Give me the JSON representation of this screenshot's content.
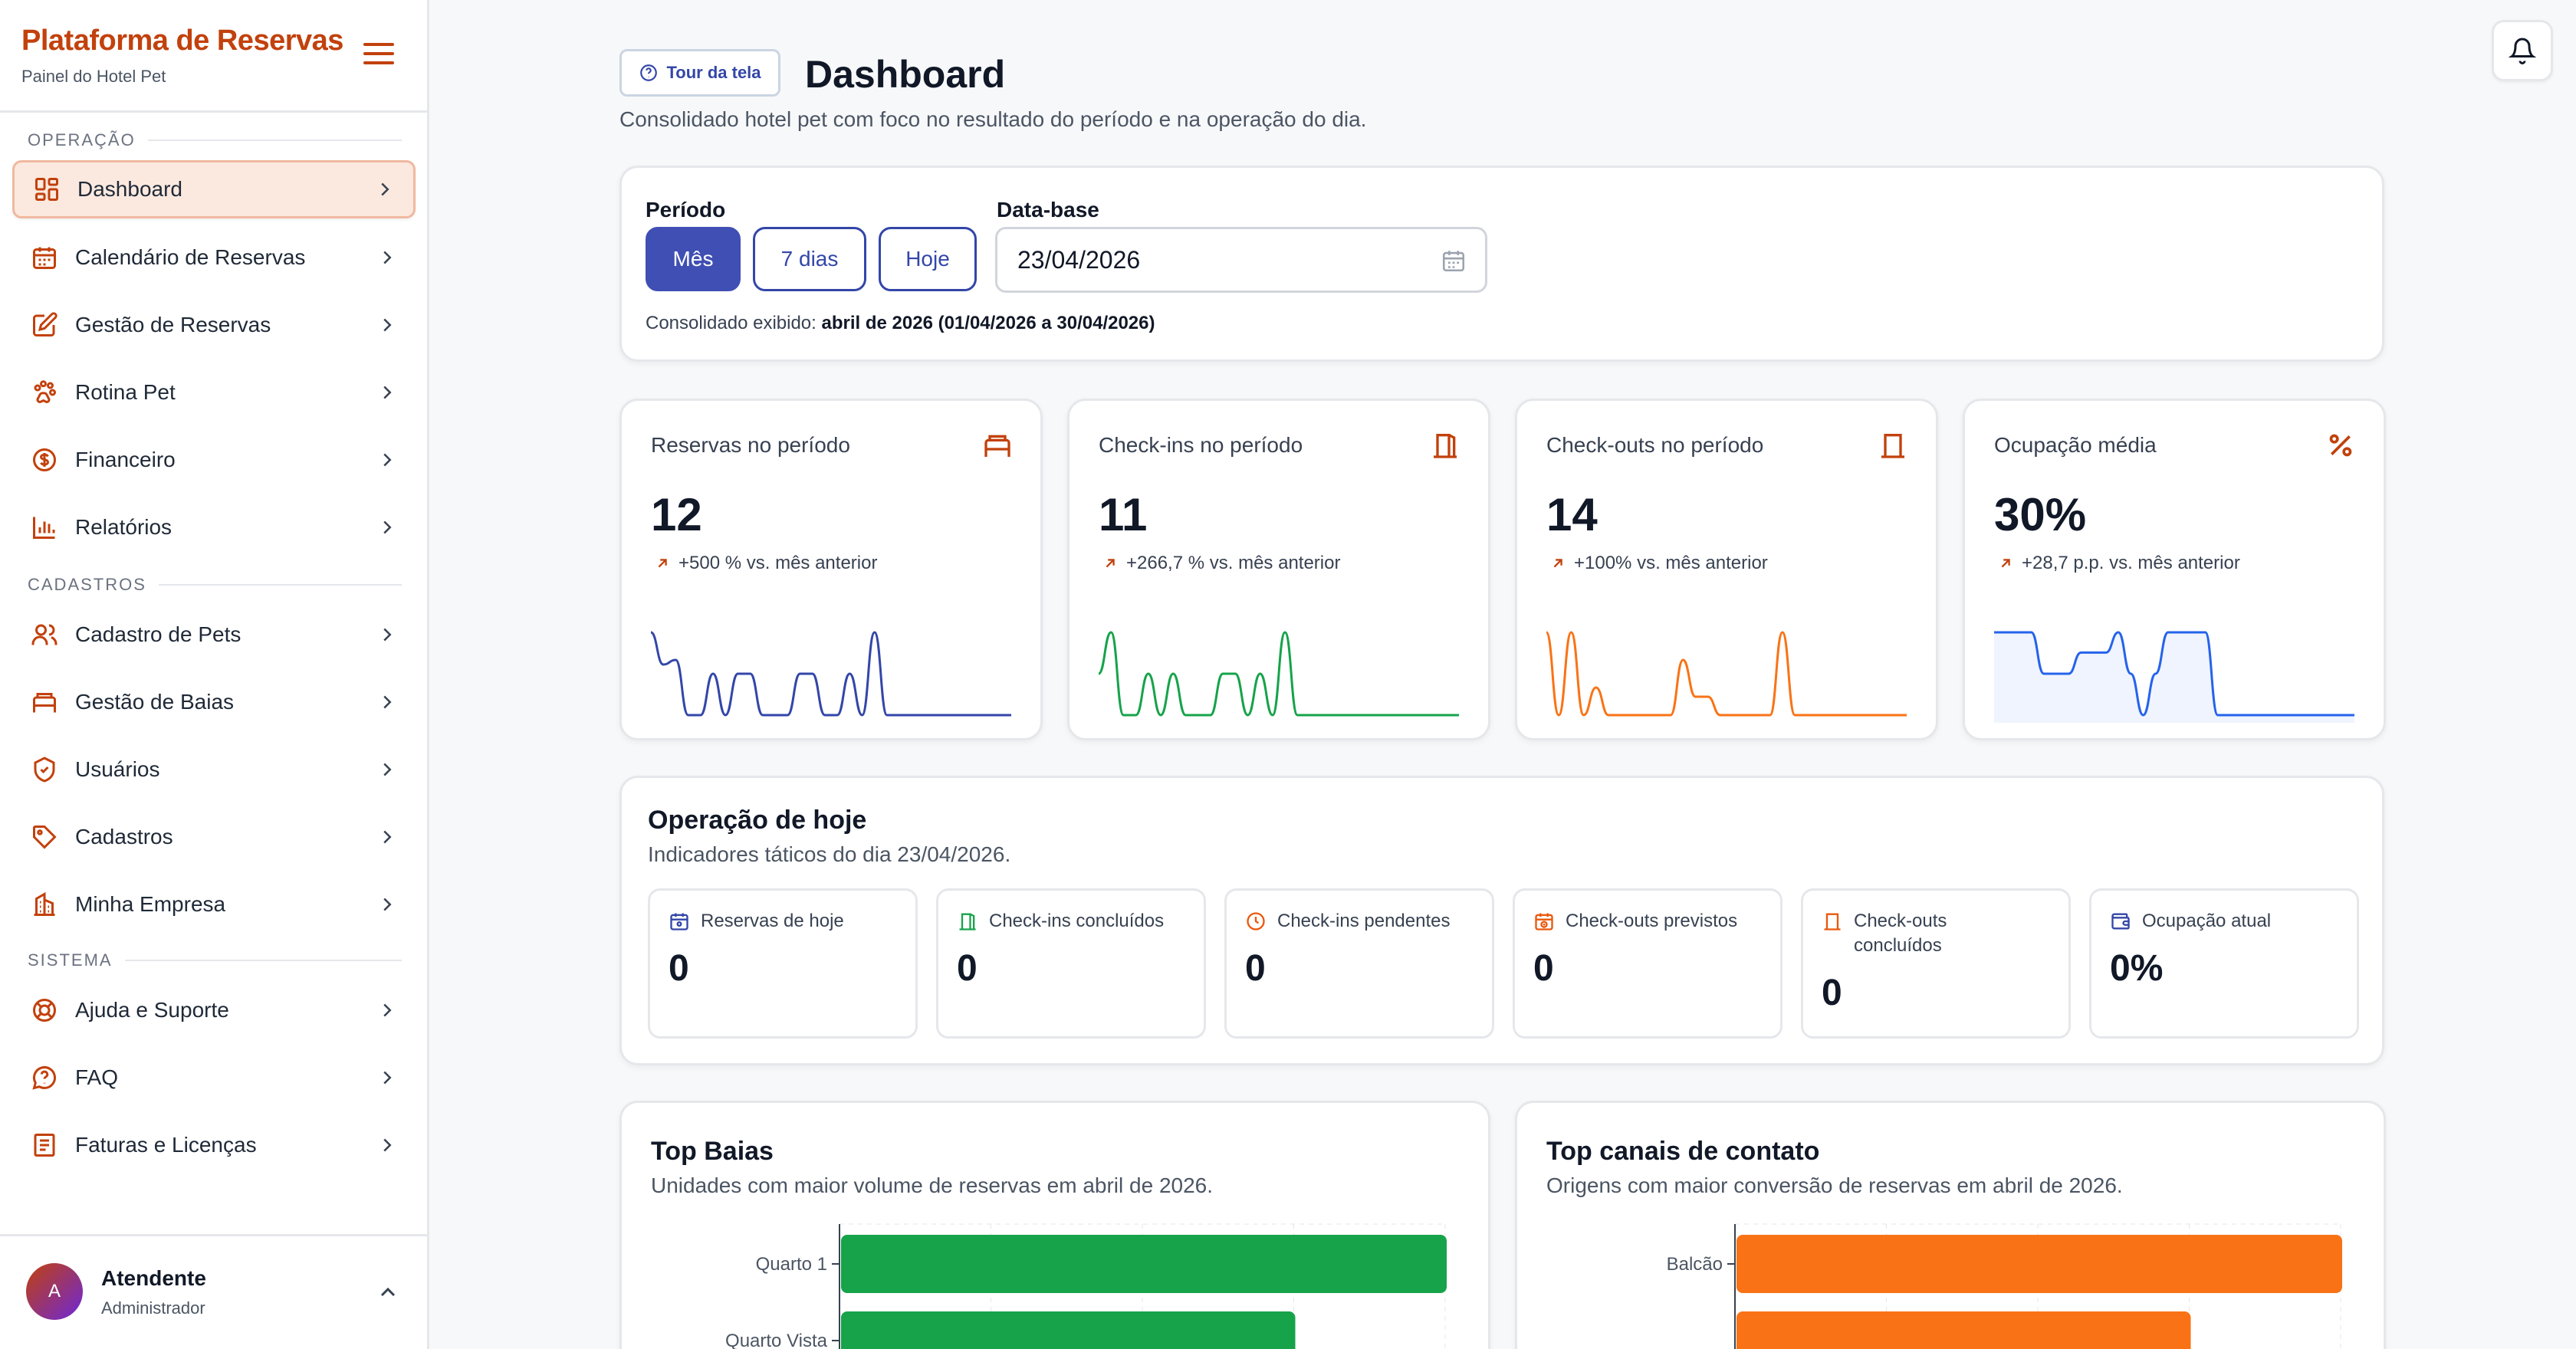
{
  "sidebar": {
    "brand_title": "Plataforma de Reservas",
    "brand_subtitle": "Painel do Hotel Pet",
    "sections": {
      "operacao": "OPERAÇÃO",
      "cadastros": "CADASTROS",
      "sistema": "SISTEMA"
    },
    "items": {
      "dashboard": "Dashboard",
      "calendario": "Calendário de Reservas",
      "gestao_reservas": "Gestão de Reservas",
      "rotina_pet": "Rotina Pet",
      "financeiro": "Financeiro",
      "relatorios": "Relatórios",
      "cadastro_pets": "Cadastro de Pets",
      "gestao_baias": "Gestão de Baias",
      "usuarios": "Usuários",
      "cadastros": "Cadastros",
      "minha_empresa": "Minha Empresa",
      "ajuda": "Ajuda e Suporte",
      "faq": "FAQ",
      "faturas": "Faturas e Licenças"
    },
    "user": {
      "initial": "A",
      "name": "Atendente",
      "role": "Administrador"
    }
  },
  "header": {
    "tour_label": "Tour da tela",
    "title": "Dashboard",
    "subtitle": "Consolidado hotel pet com foco no resultado do período e na operação do dia."
  },
  "filters": {
    "period_label": "Período",
    "period_options": [
      "Mês",
      "7 dias",
      "Hoje"
    ],
    "period_selected": "Mês",
    "date_label": "Data-base",
    "date_value": "23/04/2026",
    "consolidado_prefix": "Consolidado exibido:",
    "consolidado_value": "abril de 2026 (01/04/2026 a 30/04/2026)"
  },
  "kpis": [
    {
      "title": "Reservas no período",
      "icon": "bed-icon",
      "value": "12",
      "delta": "+500 % vs. mês anterior",
      "color": "#3346a8",
      "spark": [
        0.9,
        0.55,
        0.6,
        0,
        0,
        0.45,
        0,
        0.45,
        0.45,
        0,
        0,
        0,
        0.45,
        0.45,
        0,
        0,
        0.45,
        0,
        0.9,
        0,
        0,
        0,
        0,
        0,
        0,
        0,
        0,
        0,
        0,
        0
      ]
    },
    {
      "title": "Check-ins no período",
      "icon": "door-icon",
      "value": "11",
      "delta": "+266,7 % vs. mês anterior",
      "color": "#16a34a",
      "spark": [
        0.45,
        0.9,
        0,
        0,
        0.45,
        0,
        0.45,
        0,
        0,
        0,
        0.45,
        0.45,
        0,
        0.45,
        0,
        0.9,
        0,
        0,
        0,
        0,
        0,
        0,
        0,
        0,
        0,
        0,
        0,
        0,
        0,
        0
      ]
    },
    {
      "title": "Check-outs no período",
      "icon": "door-closed-icon",
      "value": "14",
      "delta": "+100% vs. mês anterior",
      "color": "#f97316",
      "spark": [
        0.9,
        0,
        0.9,
        0,
        0.3,
        0,
        0,
        0,
        0,
        0,
        0,
        0.6,
        0.2,
        0.2,
        0,
        0,
        0,
        0,
        0,
        0.9,
        0,
        0,
        0,
        0,
        0,
        0,
        0,
        0,
        0,
        0
      ]
    },
    {
      "title": "Ocupação média",
      "icon": "percent-icon",
      "value": "30%",
      "delta": "+28,7 p.p. vs. mês anterior",
      "color": "#2563eb",
      "spark": [
        0.9,
        0.9,
        0.9,
        0.9,
        0.45,
        0.45,
        0.45,
        0.68,
        0.68,
        0.68,
        0.9,
        0.45,
        0,
        0.45,
        0.9,
        0.9,
        0.9,
        0.9,
        0,
        0,
        0,
        0,
        0,
        0,
        0,
        0,
        0,
        0,
        0,
        0
      ]
    }
  ],
  "today": {
    "title": "Operação de hoje",
    "subtitle": "Indicadores táticos do dia 23/04/2026.",
    "items": [
      {
        "label": "Reservas de hoje",
        "value": "0",
        "icon": "calendar-icon",
        "color": "#3346a8"
      },
      {
        "label": "Check-ins concluídos",
        "value": "0",
        "icon": "door-open-icon",
        "color": "#16a34a"
      },
      {
        "label": "Check-ins pendentes",
        "value": "0",
        "icon": "clock-icon",
        "color": "#ea580c"
      },
      {
        "label": "Check-outs previstos",
        "value": "0",
        "icon": "calendar-clock-icon",
        "color": "#ea580c"
      },
      {
        "label": "Check-outs concluídos",
        "value": "0",
        "icon": "door-closed-icon",
        "color": "#ea580c"
      },
      {
        "label": "Ocupação atual",
        "value": "0%",
        "icon": "wallet-icon",
        "color": "#3346a8"
      }
    ]
  },
  "top_baias": {
    "title": "Top Baias",
    "subtitle": "Unidades com maior volume de reservas em abril de 2026.",
    "color": "#16a34a",
    "chart_data": {
      "type": "bar",
      "orientation": "horizontal",
      "categories": [
        "Quarto 1",
        "Quarto Vista"
      ],
      "values": [
        4,
        3
      ]
    }
  },
  "top_canais": {
    "title": "Top canais de contato",
    "subtitle": "Origens com maior conversão de reservas em abril de 2026.",
    "color": "#f97316",
    "chart_data": {
      "type": "bar",
      "orientation": "horizontal",
      "categories": [
        "Balcão",
        ""
      ],
      "values": [
        6,
        4.5
      ]
    }
  }
}
